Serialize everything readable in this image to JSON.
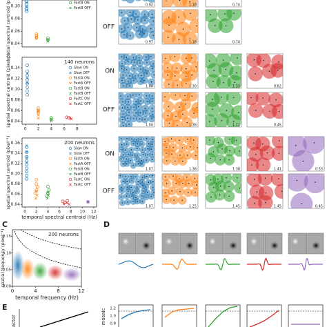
{
  "scatter_panels": [
    {
      "ylabel": "spatial spectral centroid (pixel⁻¹)",
      "xlim": [
        -0.5,
        12.5
      ],
      "ylim": [
        0.035,
        0.11
      ],
      "yticks": [
        0.04,
        0.06,
        0.08,
        {
          "value": 0.1,
          "label": "0.10"
        }
      ],
      "series": [
        {
          "color": "#1f77b4",
          "marker": "o",
          "x": [
            0.3,
            0.3,
            0.3,
            0.3,
            0.3
          ],
          "y": [
            0.092,
            0.096,
            0.1,
            0.104,
            0.108
          ]
        },
        {
          "color": "#1f77b4",
          "marker": "x",
          "x": [
            0.3,
            0.3,
            0.3
          ],
          "y": [
            0.094,
            0.099,
            0.106
          ]
        },
        {
          "color": "#ff7f0e",
          "marker": "o",
          "x": [
            2,
            2,
            2
          ],
          "y": [
            0.05,
            0.053,
            0.056
          ]
        },
        {
          "color": "#ff7f0e",
          "marker": "x",
          "x": [
            2,
            2
          ],
          "y": [
            0.048,
            0.051
          ]
        },
        {
          "name": "FastB ON",
          "color": "#2ca02c",
          "marker": "o",
          "x": [
            4,
            4
          ],
          "y": [
            0.046,
            0.049
          ]
        },
        {
          "name": "FastB OFF",
          "color": "#2ca02c",
          "marker": "x",
          "x": [
            4,
            4
          ],
          "y": [
            0.044,
            0.047
          ]
        }
      ],
      "rows": [
        {
          "values": [
            "0.92",
            "1.18",
            "0.74"
          ]
        },
        {
          "label": "OFF",
          "values": [
            "0.97",
            "1.18",
            "0.74"
          ]
        }
      ]
    },
    {
      "ylabel": "spatial spectral centroid (pixel⁻¹)",
      "note": "140 neurons",
      "xlim": [
        -0.5,
        11
      ],
      "ylim": [
        0.035,
        0.16
      ],
      "xticks": [
        0,
        2,
        4,
        6,
        8
      ],
      "yticks": [
        0.04,
        0.06,
        0.08,
        {
          "value": 0.1,
          "label": "0.10"
        },
        0.12,
        0.14
      ],
      "series": [
        {
          "name": "Slow ON",
          "color": "#1f77b4",
          "marker": "o",
          "x": [
            0.3,
            0.3,
            0.3,
            0.3,
            0.3,
            0.3,
            0.3,
            0.3
          ],
          "y": [
            0.09,
            0.097,
            0.104,
            0.111,
            0.118,
            0.126,
            0.134,
            0.145
          ]
        },
        {
          "name": "Slow OFF",
          "color": "#1f77b4",
          "marker": "x",
          "x": [
            0.3,
            0.3,
            0.3
          ],
          "y": [
            0.112,
            0.121,
            0.13
          ]
        },
        {
          "name": "FastA ON",
          "color": "#ff7f0e",
          "marker": "o",
          "x": [
            2,
            2,
            2,
            2
          ],
          "y": [
            0.055,
            0.058,
            0.061,
            0.065
          ]
        },
        {
          "name": "FastA OFF",
          "color": "#ff7f0e",
          "marker": "x",
          "x": [
            2,
            2,
            2
          ],
          "y": [
            0.046,
            0.052,
            0.06
          ]
        },
        {
          "name": "FastB ON",
          "color": "#2ca02c",
          "marker": "o",
          "x": [
            4,
            4
          ],
          "y": [
            0.044,
            0.047
          ]
        },
        {
          "name": "FastB OFF",
          "color": "#2ca02c",
          "marker": "x",
          "x": [
            4,
            4
          ],
          "y": [
            0.041,
            0.044
          ]
        },
        {
          "name": "FastC ON",
          "color": "#d62728",
          "marker": "o",
          "x": [
            6.4,
            6.7
          ],
          "y": [
            0.048,
            0.047
          ]
        },
        {
          "name": "FastC OFF",
          "color": "#d62728",
          "marker": "x",
          "x": [
            6.9,
            7.1
          ],
          "y": [
            0.046,
            0.045
          ]
        }
      ],
      "rows": [
        {
          "label": "ON",
          "values": [
            "1.04",
            "1.30",
            "1.33",
            "0.82"
          ]
        },
        {
          "label": "OFF",
          "values": [
            "1.04",
            "1.36",
            "1.11",
            "0.45"
          ]
        }
      ]
    },
    {
      "ylabel": "spatial spectral centroid (pixel⁻¹)",
      "xlabel": "temporal spectral centroid (Hz)",
      "note": "200 neurons",
      "xlim": [
        -0.5,
        12.5
      ],
      "ylim": [
        0.035,
        0.17
      ],
      "xticks": [
        0,
        2,
        4,
        6,
        8,
        10,
        12
      ],
      "yticks": [
        0.04,
        0.06,
        0.08,
        {
          "value": 0.1,
          "label": "0.10"
        },
        0.12,
        0.14,
        0.16
      ],
      "series": [
        {
          "name": "Slow ON",
          "color": "#1f77b4",
          "marker": "o",
          "x": [
            0.3,
            0.3,
            0.3,
            0.3,
            0.3,
            0.3,
            0.3,
            0.3,
            0.3
          ],
          "y": [
            0.09,
            0.097,
            0.104,
            0.111,
            0.118,
            0.125,
            0.133,
            0.142,
            0.152
          ]
        },
        {
          "name": "Slow OFF",
          "color": "#1f77b4",
          "marker": "x",
          "x": [
            0.3,
            0.3,
            0.3,
            0.3
          ],
          "y": [
            0.122,
            0.132,
            0.143,
            0.155
          ]
        },
        {
          "name": "FastA ON",
          "color": "#ff7f0e",
          "marker": "o",
          "x": [
            1.8,
            2,
            2.2,
            2,
            2
          ],
          "y": [
            0.062,
            0.068,
            0.074,
            0.08,
            0.088
          ]
        },
        {
          "name": "FastA OFF",
          "color": "#ff7f0e",
          "marker": "x",
          "x": [
            1.9,
            2.1,
            2
          ],
          "y": [
            0.052,
            0.058,
            0.066
          ]
        },
        {
          "name": "FastB ON",
          "color": "#2ca02c",
          "marker": "o",
          "x": [
            3.8,
            4,
            4.2,
            4
          ],
          "y": [
            0.056,
            0.062,
            0.068,
            0.075
          ]
        },
        {
          "name": "FastB OFF",
          "color": "#2ca02c",
          "marker": "x",
          "x": [
            3.9,
            4.1,
            4
          ],
          "y": [
            0.052,
            0.058,
            0.064
          ]
        },
        {
          "name": "FastC ON",
          "color": "#d62728",
          "marker": "o",
          "x": [
            6.6,
            7,
            7.4
          ],
          "y": [
            0.046,
            0.044,
            0.047
          ]
        },
        {
          "name": "FastC OFF",
          "color": "#d62728",
          "marker": "x",
          "x": [
            6.8,
            7.3,
            7.7
          ],
          "y": [
            0.041,
            0.043,
            0.04
          ]
        },
        {
          "color": "#9467bd",
          "marker": "s",
          "x": [
            11
          ],
          "y": [
            0.045
          ]
        }
      ],
      "rows": [
        {
          "label": "ON",
          "values": [
            "1.07",
            "1.36",
            "1.38",
            "1.41",
            "0.33"
          ]
        },
        {
          "label": "OFF",
          "values": [
            "1.07",
            "1.25",
            "1.45",
            "1.45",
            "0.45"
          ]
        }
      ]
    }
  ],
  "panel_c": {
    "letter": "C",
    "ylabel": "spatial frequency (pixel⁻¹)",
    "xlabel": "temporal frequency (Hz)",
    "note": "200 neurons",
    "xlim": [
      0,
      12
    ],
    "ylim": [
      0,
      0.17
    ],
    "xticks": [
      0,
      4,
      8,
      12
    ],
    "yticks": [
      {
        "value": 0,
        "label": "0.00"
      },
      0.05,
      {
        "value": 0.1,
        "label": "0.10"
      },
      0.15
    ]
  },
  "panel_d": {
    "letter": "D"
  },
  "panel_e": {
    "letter": "E",
    "ylabel": "age factor",
    "mosaic_ylabel": "per mosaic",
    "mosaic_yticks": [
      "1.2",
      "1.0",
      "0.8"
    ]
  }
}
